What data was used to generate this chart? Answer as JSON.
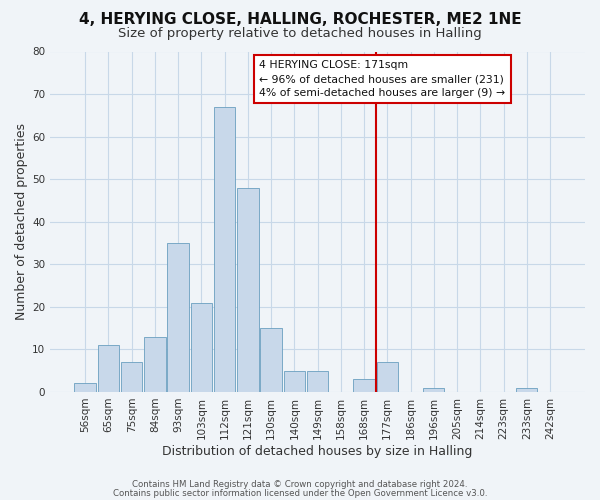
{
  "title": "4, HERYING CLOSE, HALLING, ROCHESTER, ME2 1NE",
  "subtitle": "Size of property relative to detached houses in Halling",
  "xlabel": "Distribution of detached houses by size in Halling",
  "ylabel": "Number of detached properties",
  "bar_color": "#c8d8ea",
  "bar_edge_color": "#6a9fc0",
  "categories": [
    "56sqm",
    "65sqm",
    "75sqm",
    "84sqm",
    "93sqm",
    "103sqm",
    "112sqm",
    "121sqm",
    "130sqm",
    "140sqm",
    "149sqm",
    "158sqm",
    "168sqm",
    "177sqm",
    "186sqm",
    "196sqm",
    "205sqm",
    "214sqm",
    "223sqm",
    "233sqm",
    "242sqm"
  ],
  "values": [
    2,
    11,
    7,
    13,
    35,
    21,
    67,
    48,
    15,
    5,
    5,
    0,
    3,
    7,
    0,
    1,
    0,
    0,
    0,
    1,
    0
  ],
  "ylim": [
    0,
    80
  ],
  "yticks": [
    0,
    10,
    20,
    30,
    40,
    50,
    60,
    70,
    80
  ],
  "vline_x": 12.5,
  "vline_color": "#cc0000",
  "annotation_title": "4 HERYING CLOSE: 171sqm",
  "annotation_line1": "← 96% of detached houses are smaller (231)",
  "annotation_line2": "4% of semi-detached houses are larger (9) →",
  "footer1": "Contains HM Land Registry data © Crown copyright and database right 2024.",
  "footer2": "Contains public sector information licensed under the Open Government Licence v3.0.",
  "bg_color": "#f0f4f8",
  "grid_color": "#c8d8e8",
  "title_fontsize": 11,
  "subtitle_fontsize": 9.5,
  "axis_label_fontsize": 9,
  "tick_fontsize": 7.5
}
